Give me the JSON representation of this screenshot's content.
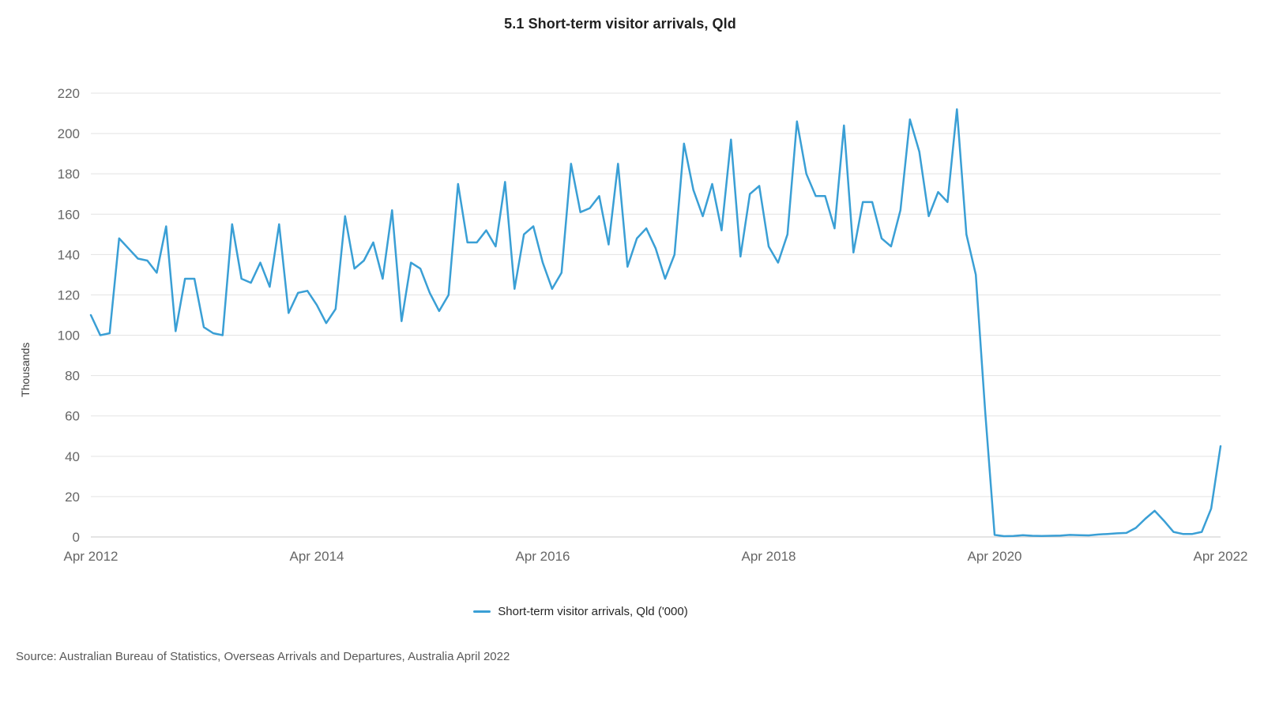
{
  "title": "5.1 Short-term visitor arrivals, Qld",
  "source": "Source: Australian Bureau of Statistics, Overseas Arrivals and Departures, Australia April 2022",
  "legend": {
    "label": "Short-term visitor arrivals, Qld ('000)"
  },
  "chart_data": {
    "type": "line",
    "title": "5.1 Short-term visitor arrivals, Qld",
    "xlabel": "",
    "ylabel": "Thousands",
    "series_name": "Short-term visitor arrivals, Qld ('000)",
    "line_color": "#3a9fd5",
    "grid_color": "#e3e3e3",
    "baseline_color": "#c8c8c8",
    "tick_label_color": "#666666",
    "ylim": [
      0,
      220
    ],
    "ytick_step": 20,
    "legend_position": "bottom-center",
    "grid": "horizontal-only",
    "x_ticks": [
      {
        "index": 0,
        "label": "Apr 2012"
      },
      {
        "index": 24,
        "label": "Apr 2014"
      },
      {
        "index": 48,
        "label": "Apr 2016"
      },
      {
        "index": 72,
        "label": "Apr 2018"
      },
      {
        "index": 96,
        "label": "Apr 2020"
      },
      {
        "index": 120,
        "label": "Apr 2022"
      }
    ],
    "x": [
      "Apr 2012",
      "May 2012",
      "Jun 2012",
      "Jul 2012",
      "Aug 2012",
      "Sep 2012",
      "Oct 2012",
      "Nov 2012",
      "Dec 2012",
      "Jan 2013",
      "Feb 2013",
      "Mar 2013",
      "Apr 2013",
      "May 2013",
      "Jun 2013",
      "Jul 2013",
      "Aug 2013",
      "Sep 2013",
      "Oct 2013",
      "Nov 2013",
      "Dec 2013",
      "Jan 2014",
      "Feb 2014",
      "Mar 2014",
      "Apr 2014",
      "May 2014",
      "Jun 2014",
      "Jul 2014",
      "Aug 2014",
      "Sep 2014",
      "Oct 2014",
      "Nov 2014",
      "Dec 2014",
      "Jan 2015",
      "Feb 2015",
      "Mar 2015",
      "Apr 2015",
      "May 2015",
      "Jun 2015",
      "Jul 2015",
      "Aug 2015",
      "Sep 2015",
      "Oct 2015",
      "Nov 2015",
      "Dec 2015",
      "Jan 2016",
      "Feb 2016",
      "Mar 2016",
      "Apr 2016",
      "May 2016",
      "Jun 2016",
      "Jul 2016",
      "Aug 2016",
      "Sep 2016",
      "Oct 2016",
      "Nov 2016",
      "Dec 2016",
      "Jan 2017",
      "Feb 2017",
      "Mar 2017",
      "Apr 2017",
      "May 2017",
      "Jun 2017",
      "Jul 2017",
      "Aug 2017",
      "Sep 2017",
      "Oct 2017",
      "Nov 2017",
      "Dec 2017",
      "Jan 2018",
      "Feb 2018",
      "Mar 2018",
      "Apr 2018",
      "May 2018",
      "Jun 2018",
      "Jul 2018",
      "Aug 2018",
      "Sep 2018",
      "Oct 2018",
      "Nov 2018",
      "Dec 2018",
      "Jan 2019",
      "Feb 2019",
      "Mar 2019",
      "Apr 2019",
      "May 2019",
      "Jun 2019",
      "Jul 2019",
      "Aug 2019",
      "Sep 2019",
      "Oct 2019",
      "Nov 2019",
      "Dec 2019",
      "Jan 2020",
      "Feb 2020",
      "Mar 2020",
      "Apr 2020",
      "May 2020",
      "Jun 2020",
      "Jul 2020",
      "Aug 2020",
      "Sep 2020",
      "Oct 2020",
      "Nov 2020",
      "Dec 2020",
      "Jan 2021",
      "Feb 2021",
      "Mar 2021",
      "Apr 2021",
      "May 2021",
      "Jun 2021",
      "Jul 2021",
      "Aug 2021",
      "Sep 2021",
      "Oct 2021",
      "Nov 2021",
      "Dec 2021",
      "Jan 2022",
      "Feb 2022",
      "Mar 2022",
      "Apr 2022"
    ],
    "values": [
      110,
      100,
      101,
      148,
      143,
      138,
      137,
      131,
      154,
      102,
      128,
      128,
      104,
      101,
      100,
      155,
      128,
      126,
      136,
      124,
      155,
      111,
      121,
      122,
      115,
      106,
      113,
      159,
      133,
      137,
      146,
      128,
      162,
      107,
      136,
      133,
      121,
      112,
      120,
      175,
      146,
      146,
      152,
      144,
      176,
      123,
      150,
      154,
      136,
      123,
      131,
      185,
      161,
      163,
      169,
      145,
      185,
      134,
      148,
      153,
      143,
      128,
      140,
      195,
      172,
      159,
      175,
      152,
      197,
      139,
      170,
      174,
      144,
      136,
      150,
      206,
      180,
      169,
      169,
      153,
      204,
      141,
      166,
      166,
      148,
      144,
      162,
      207,
      191,
      159,
      171,
      166,
      212,
      150,
      130,
      62,
      1,
      0.4,
      0.5,
      0.9,
      0.6,
      0.5,
      0.6,
      0.7,
      1,
      0.9,
      0.8,
      1.2,
      1.5,
      1.8,
      2,
      4.5,
      9,
      13,
      8,
      2.5,
      1.5,
      1.5,
      2.5,
      14,
      45
    ]
  }
}
